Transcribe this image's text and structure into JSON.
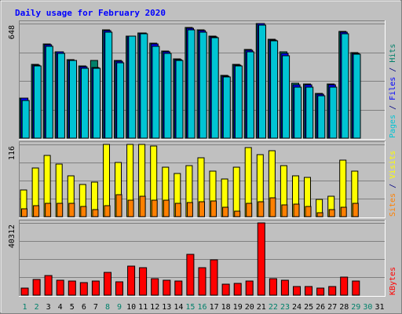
{
  "chart_data": {
    "type": "bar",
    "title": "Daily usage for February 2020",
    "categories": [
      "1",
      "2",
      "3",
      "4",
      "5",
      "6",
      "7",
      "8",
      "9",
      "10",
      "11",
      "12",
      "13",
      "14",
      "15",
      "16",
      "17",
      "18",
      "19",
      "20",
      "21",
      "22",
      "23",
      "24",
      "25",
      "26",
      "27",
      "28",
      "29",
      "30",
      "31"
    ],
    "weekend_days": [
      1,
      2,
      8,
      9,
      15,
      16,
      22,
      23,
      29,
      30
    ],
    "panels": [
      {
        "id": "hits",
        "max_label": "648",
        "ylim": [
          0,
          648
        ],
        "grid": true,
        "right_label": [
          {
            "text": "Pages",
            "color": "#00c4d4"
          },
          {
            "text": " / ",
            "color": "#000080"
          },
          {
            "text": "Files",
            "color": "#0000ff"
          },
          {
            "text": " / ",
            "color": "#000080"
          },
          {
            "text": "Hits",
            "color": "#00806a"
          }
        ],
        "series": [
          {
            "name": "Hits",
            "color": "#00806a",
            "values": [
              228,
              415,
              531,
              489,
              445,
              407,
              438,
              614,
              439,
              576,
              595,
              538,
              492,
              448,
              624,
              613,
              578,
              354,
              418,
              500,
              648,
              560,
              490,
              310,
              308,
              255,
              308,
              605,
              485,
              0,
              0
            ]
          },
          {
            "name": "Files",
            "color": "#0000ff",
            "values": [
              225,
              413,
              527,
              487,
              441,
              403,
              400,
              610,
              433,
              576,
              595,
              532,
              488,
              446,
              620,
              610,
              573,
              351,
              413,
              496,
              648,
              555,
              480,
              302,
              302,
              248,
              300,
              600,
              480,
              0,
              0
            ]
          },
          {
            "name": "Pages",
            "color": "#00c4d4",
            "values": [
              215,
              410,
              520,
              480,
              440,
              397,
              395,
              600,
              428,
              575,
              590,
              520,
              480,
              440,
              612,
              600,
              570,
              345,
              410,
              490,
              640,
              550,
              468,
              290,
              290,
              240,
              290,
              590,
              475,
              0,
              0
            ]
          }
        ]
      },
      {
        "id": "visits",
        "max_label": "116",
        "ylim": [
          0,
          116
        ],
        "grid": true,
        "right_label": [
          {
            "text": "Sites",
            "color": "#ff8000"
          },
          {
            "text": " / ",
            "color": "#000080"
          },
          {
            "text": "Visits",
            "color": "#ffff00"
          }
        ],
        "series": [
          {
            "name": "Visits",
            "color": "#ffff00",
            "values": [
              43,
              78,
              98,
              85,
              66,
              52,
              56,
              116,
              87,
              116,
              116,
              113,
              80,
              69,
              82,
              94,
              73,
              60,
              79,
              111,
              99,
              106,
              82,
              66,
              63,
              28,
              33,
              91,
              73,
              0,
              0
            ]
          },
          {
            "name": "Sites",
            "color": "#ff8000",
            "values": [
              13,
              18,
              21,
              22,
              22,
              16,
              11,
              18,
              35,
              27,
              33,
              26,
              27,
              21,
              23,
              24,
              25,
              15,
              9,
              22,
              24,
              30,
              19,
              20,
              17,
              6,
              11,
              15,
              22,
              0,
              0
            ]
          }
        ]
      },
      {
        "id": "kbytes",
        "max_label": "40312",
        "ylim": [
          0,
          40312
        ],
        "grid": true,
        "right_label": [
          {
            "text": "KBytes",
            "color": "#ff0000"
          }
        ],
        "series": [
          {
            "name": "KBytes",
            "color": "#ff0000",
            "values": [
              3800,
              8600,
              10800,
              8300,
              8100,
              7200,
              8100,
              12800,
              7600,
              16200,
              15200,
              9100,
              8300,
              7800,
              22800,
              15300,
              19800,
              6100,
              6700,
              8000,
              40312,
              9300,
              8400,
              4800,
              4800,
              3800,
              4800,
              10100,
              8000,
              0,
              0
            ]
          }
        ]
      }
    ]
  }
}
